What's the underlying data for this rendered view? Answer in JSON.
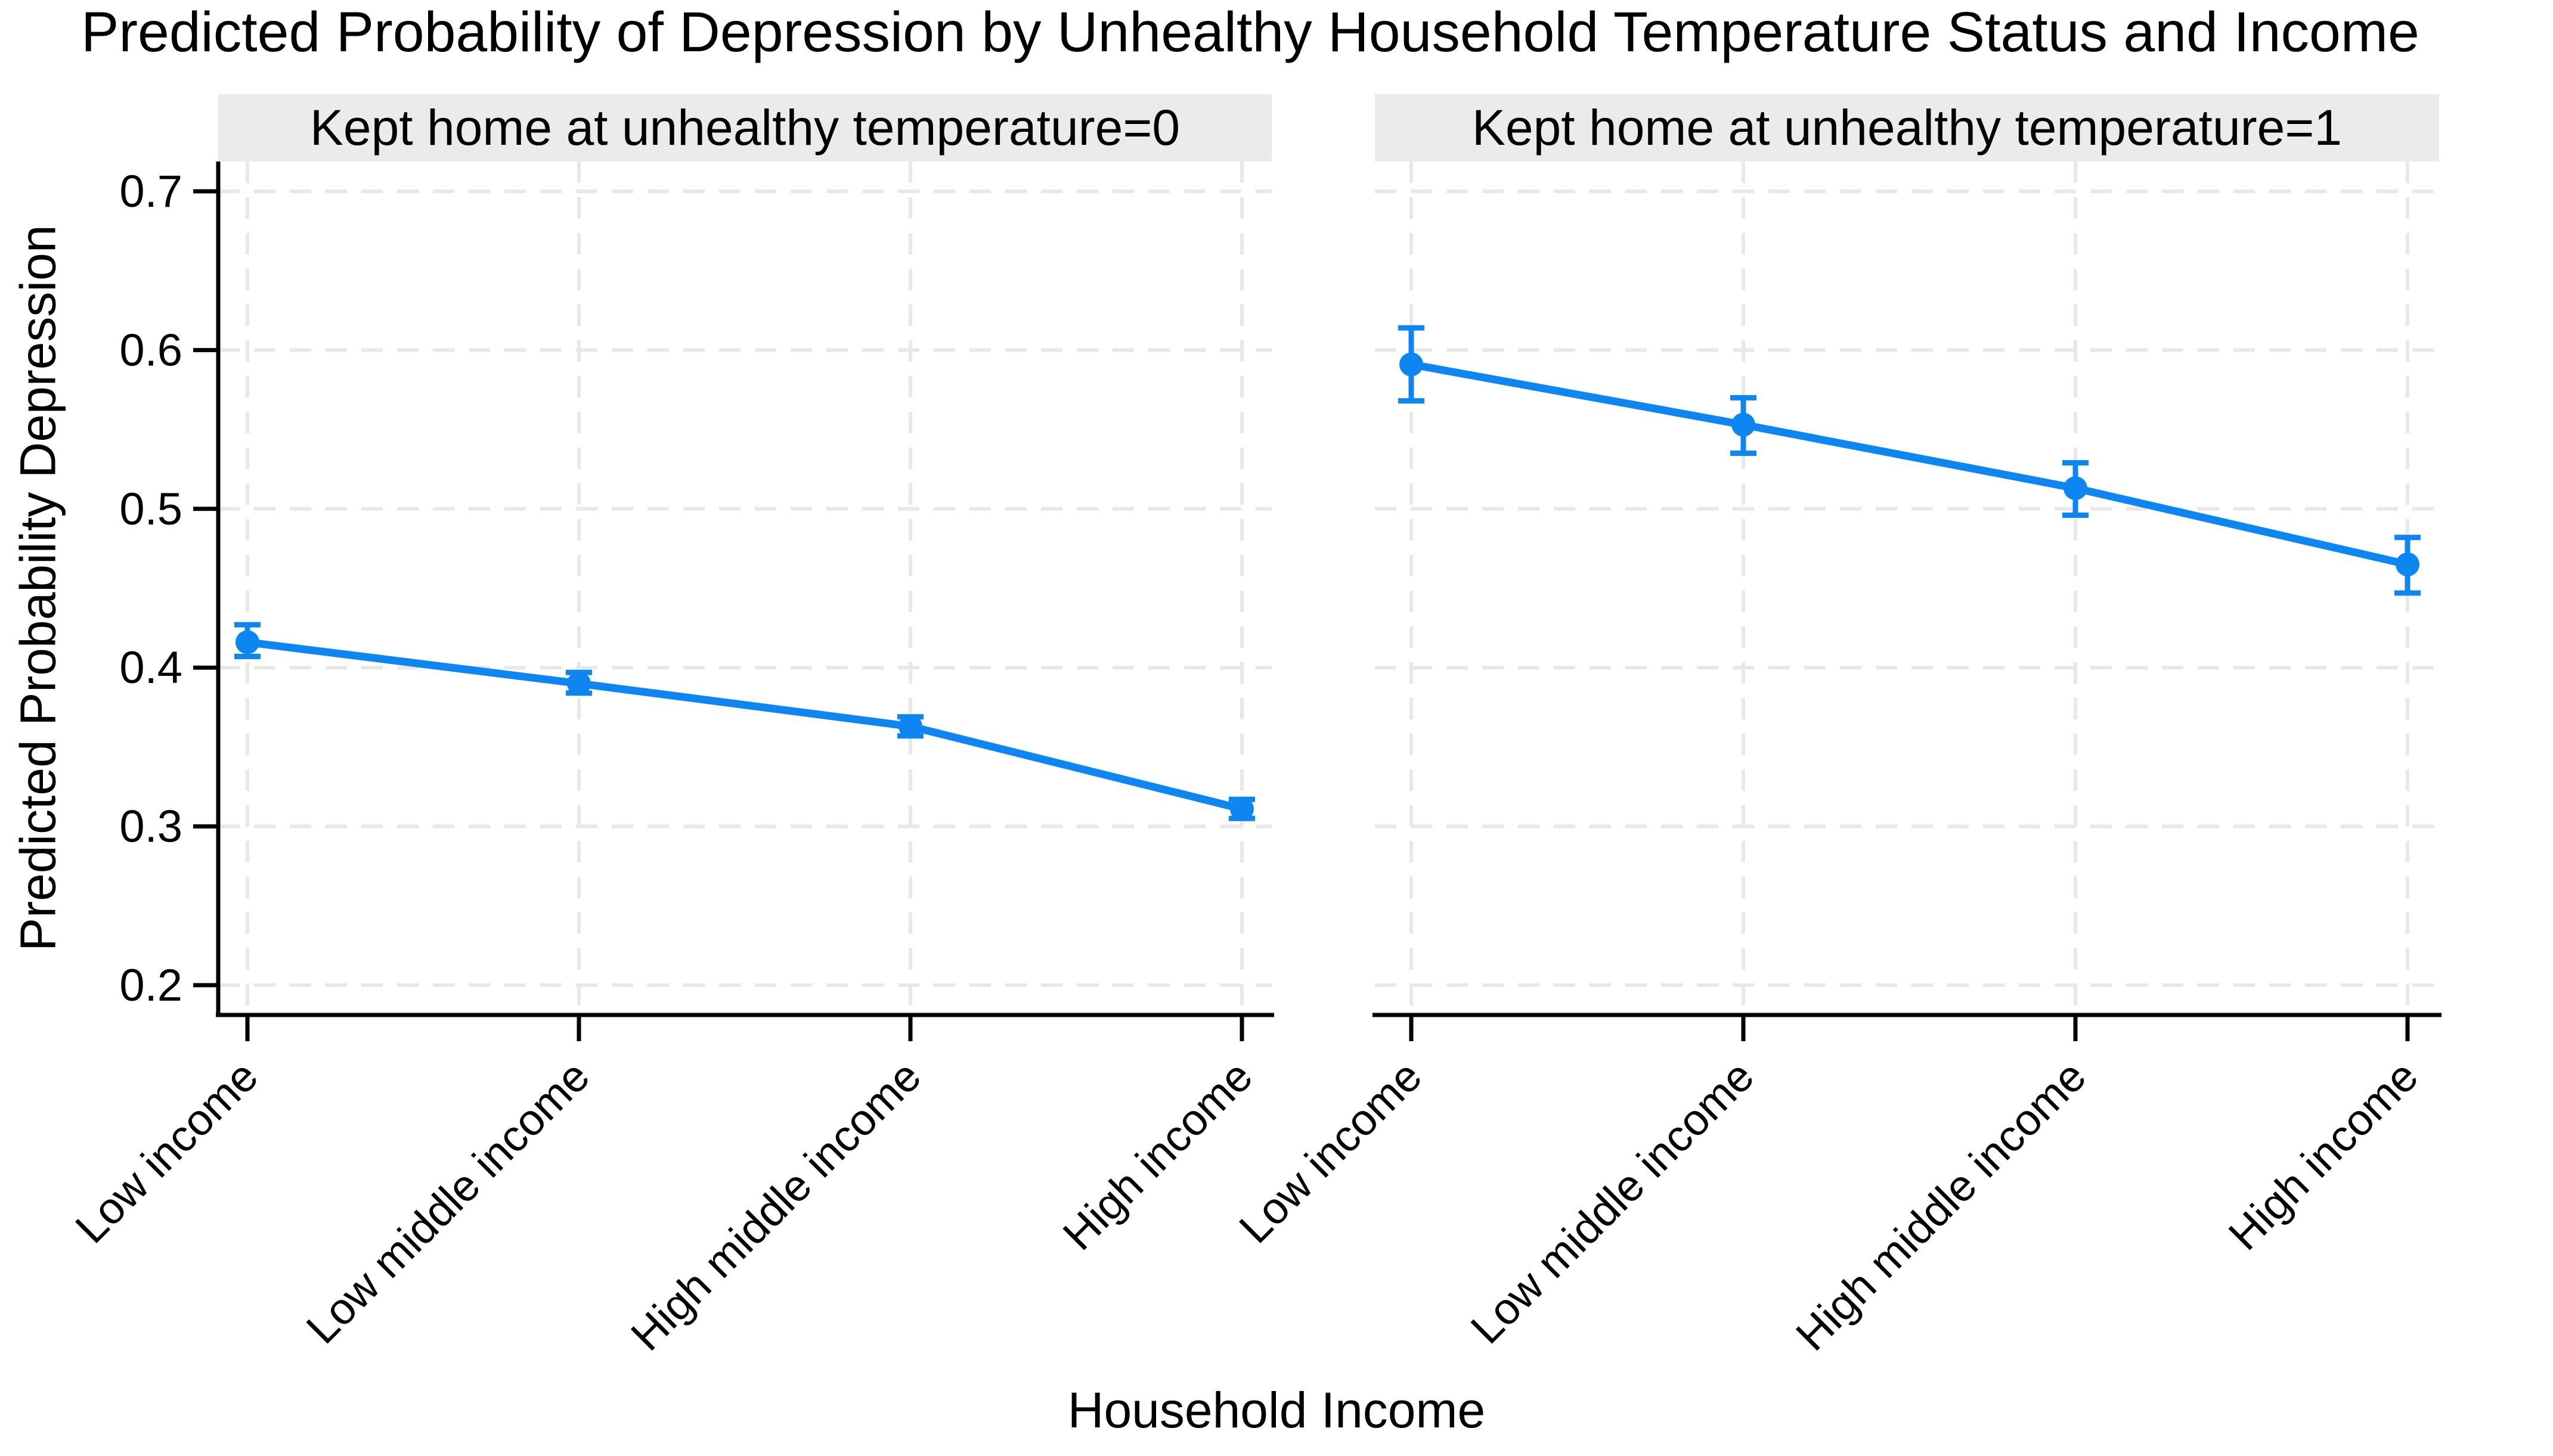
{
  "title": "Predicted Probability of Depression by Unhealthy Household Temperature Status and Income",
  "axes": {
    "x_label": "Household Income",
    "y_label": "Predicted Probability Depression",
    "y_ticks": [
      0.7,
      0.6,
      0.5,
      0.4,
      0.3,
      0.2
    ],
    "y_tick_labels": [
      "0.7",
      "0.6",
      "0.5",
      "0.4",
      "0.3",
      "0.2"
    ],
    "ylim": [
      0.18,
      0.72
    ]
  },
  "colors": {
    "series": "#0d86f2",
    "strip_bg": "#ebebeb",
    "grid": "#e8e8e8",
    "axis": "#000000",
    "text": "#000000",
    "background": "#ffffff"
  },
  "chart_data": {
    "type": "line",
    "title": "Predicted Probability of Depression by Unhealthy Household Temperature Status and Income",
    "xlabel": "Household Income",
    "ylabel": "Predicted Probability Depression",
    "ylim": [
      0.18,
      0.72
    ],
    "grid": "dashed-both-axes",
    "legend": "none",
    "error_bars": true,
    "categories": [
      "Low income",
      "Low middle income",
      "High middle income",
      "High income"
    ],
    "facets": [
      {
        "label": "Kept home at unhealthy temperature=0",
        "values": [
          0.416,
          0.39,
          0.363,
          0.311
        ],
        "ci_low": [
          0.407,
          0.384,
          0.357,
          0.305
        ],
        "ci_high": [
          0.427,
          0.397,
          0.369,
          0.317
        ]
      },
      {
        "label": "Kept home at unhealthy temperature=1",
        "values": [
          0.591,
          0.553,
          0.513,
          0.465
        ],
        "ci_low": [
          0.568,
          0.535,
          0.496,
          0.447
        ],
        "ci_high": [
          0.614,
          0.57,
          0.529,
          0.482
        ]
      }
    ]
  }
}
